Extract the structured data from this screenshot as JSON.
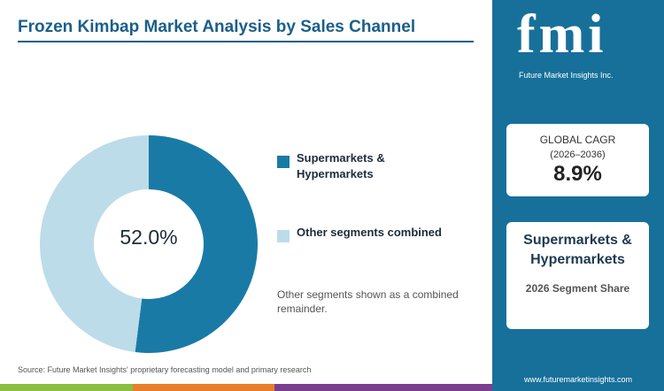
{
  "chart_data": {
    "type": "pie",
    "title": "Frozen Kimbap Market Analysis by Sales Channel",
    "categories": [
      "Supermarkets & Hypermarkets",
      "Other segments combined"
    ],
    "values": [
      52.0,
      48.0
    ],
    "value_labels": [
      "52.0%",
      null
    ],
    "colors": [
      "#1a7aa6",
      "#bcdce9"
    ],
    "donut": true
  },
  "note": "Other segments shown as a combined remainder.",
  "source": "Source: Future Market Insights' proprietary forecasting model and primary research",
  "sidebar": {
    "logo": "fmi",
    "logo_subtitle": "Future Market Insights Inc.",
    "cagr_label": "GLOBAL CAGR",
    "cagr_period": "(2026–2036)",
    "cagr_value": "8.9%",
    "segment_name": "Supermarkets & Hypermarkets",
    "segment_caption": "2026 Segment Share",
    "website": "www.futuremarketinsights.com"
  }
}
